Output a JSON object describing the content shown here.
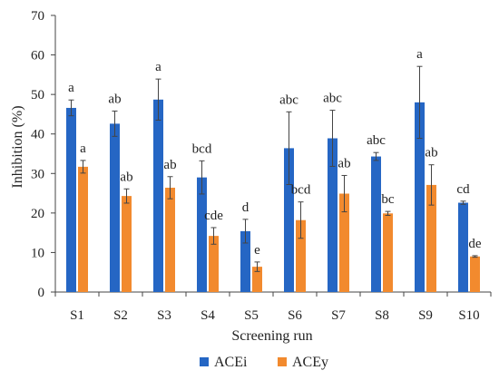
{
  "chart_data": {
    "type": "bar",
    "categories": [
      "S1",
      "S2",
      "S3",
      "S4",
      "S5",
      "S6",
      "S7",
      "S8",
      "S9",
      "S10"
    ],
    "xlabel": "Screening run",
    "ylabel": "Inhibition (%)",
    "ylim": [
      0,
      70
    ],
    "yticks": [
      0,
      10,
      20,
      30,
      40,
      50,
      60,
      70
    ],
    "grid": false,
    "legend_position": "bottom",
    "series": [
      {
        "name": "ACEi",
        "color": "#2566C4",
        "values": [
          46.6,
          42.6,
          48.7,
          29.0,
          15.4,
          36.4,
          38.9,
          34.3,
          48.0,
          22.6
        ],
        "errors": [
          2.0,
          3.2,
          5.2,
          4.2,
          3.0,
          9.2,
          7.1,
          1.0,
          9.1,
          0.4
        ],
        "labels": [
          "a",
          "ab",
          "a",
          "bcd",
          "d",
          "abc",
          "abc",
          "abc",
          "a",
          "cd"
        ]
      },
      {
        "name": "ACEy",
        "color": "#F28A2E",
        "values": [
          31.7,
          24.3,
          26.4,
          14.2,
          6.4,
          18.2,
          24.9,
          19.9,
          27.1,
          9.0
        ],
        "errors": [
          1.6,
          1.8,
          2.8,
          2.1,
          1.2,
          4.6,
          4.6,
          0.5,
          5.1,
          0.2
        ],
        "labels": [
          "a",
          "ab",
          "ab",
          "cde",
          "e",
          "bcd",
          "ab",
          "bc",
          "ab",
          "de"
        ]
      }
    ]
  }
}
